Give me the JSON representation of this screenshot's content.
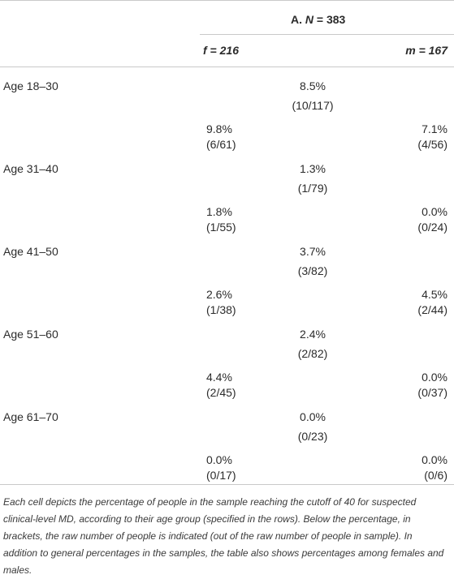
{
  "header": {
    "panel_prefix": "A.",
    "n_var": "N",
    "n_value": "= 383",
    "female_label": "f = 216",
    "male_label": "m = 167"
  },
  "rows": [
    {
      "label": "Age 18–30",
      "overall_pct": "8.5%",
      "overall_count": "(10/117)",
      "f_pct": "9.8%",
      "f_count": "(6/61)",
      "m_pct": "7.1%",
      "m_count": "(4/56)"
    },
    {
      "label": "Age 31–40",
      "overall_pct": "1.3%",
      "overall_count": "(1/79)",
      "f_pct": "1.8%",
      "f_count": "(1/55)",
      "m_pct": "0.0%",
      "m_count": "(0/24)"
    },
    {
      "label": "Age 41–50",
      "overall_pct": "3.7%",
      "overall_count": "(3/82)",
      "f_pct": "2.6%",
      "f_count": "(1/38)",
      "m_pct": "4.5%",
      "m_count": "(2/44)"
    },
    {
      "label": "Age 51–60",
      "overall_pct": "2.4%",
      "overall_count": "(2/82)",
      "f_pct": "4.4%",
      "f_count": "(2/45)",
      "m_pct": "0.0%",
      "m_count": "(0/37)"
    },
    {
      "label": "Age 61–70",
      "overall_pct": "0.0%",
      "overall_count": "(0/23)",
      "f_pct": "0.0%",
      "f_count": "(0/17)",
      "m_pct": "0.0%",
      "m_count": "(0/6)"
    }
  ],
  "footnote": "Each cell depicts the percentage of people in the sample reaching the cutoff of 40 for suspected clinical-level MD, according to their age group (specified in the rows). Below the percentage, in brackets, the raw number of people is indicated (out of the raw number of people in sample). In addition to general percentages in the samples, the table also shows percentages among females and males."
}
